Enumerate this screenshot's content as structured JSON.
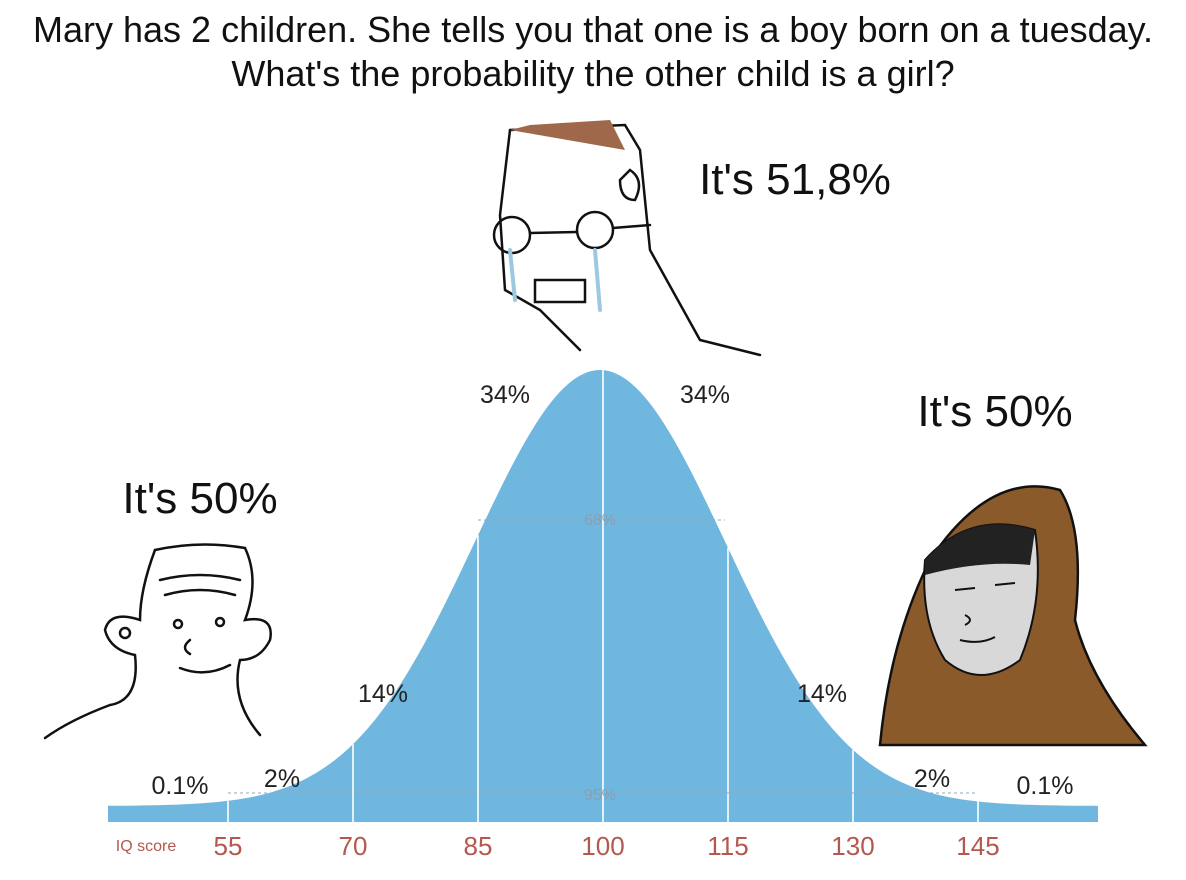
{
  "title": "Mary has 2 children. She tells you that one is a boy born on a tuesday. What's the probability the other child is a girl?",
  "captions": {
    "left": "It's 50%",
    "middle": "It's 51,8%",
    "right": "It's 50%"
  },
  "curve_labels": {
    "left_center": "34%",
    "right_center": "34%",
    "center_band": "68%",
    "left_mid": "14%",
    "right_mid": "14%",
    "left_tail": "2%",
    "right_tail": "2%",
    "left_far": "0.1%",
    "right_far": "0.1%",
    "outer_band": "95%"
  },
  "axis": {
    "label": "IQ score",
    "ticks": [
      "55",
      "70",
      "85",
      "100",
      "115",
      "130",
      "145"
    ]
  }
}
